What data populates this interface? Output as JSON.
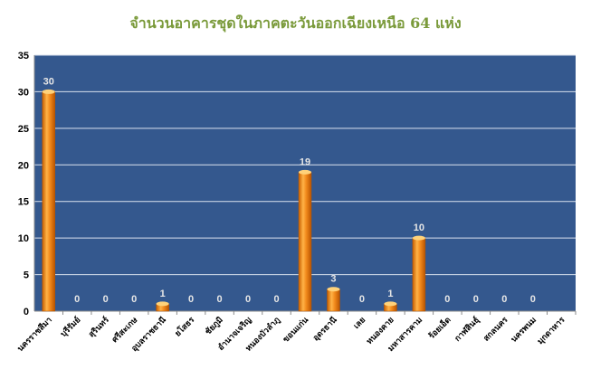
{
  "chart_data": {
    "type": "bar",
    "title": "จำนวนอาคารชุดในภาคตะวันออกเฉียงเหนือ 64 แห่ง",
    "categories": [
      "นครราชสีมา",
      "บุรีรัมย์",
      "สุรินทร์",
      "ศรีสะเกษ",
      "อุบลราชธานี",
      "ยโสธร",
      "ชัยภูมิ",
      "อำนาจเจริญ",
      "หนองบัวลำภู",
      "ขอนแก่น",
      "อุดรธานี",
      "เลย",
      "หนองคาย",
      "มหาสารคาม",
      "ร้อยเอ็ด",
      "กาฬสินธุ์",
      "สกลนคร",
      "นครพนม",
      "มุกดาหาร"
    ],
    "series": [
      {
        "values": [
          30,
          0,
          0,
          0,
          1,
          0,
          0,
          0,
          0,
          19,
          3,
          0,
          1,
          10,
          0,
          0,
          0,
          0,
          null
        ],
        "labels": [
          "30",
          "0",
          "0",
          "0",
          "1",
          "0",
          "0",
          "0",
          "0",
          "19",
          "3",
          "0",
          "1",
          "10",
          "0",
          "0",
          "0",
          "0",
          ""
        ]
      }
    ],
    "ylim": [
      0,
      35
    ],
    "yticks": [
      0,
      5,
      10,
      15,
      20,
      25,
      30,
      35
    ],
    "grid": true,
    "colors": {
      "plot_bg": "#34588E",
      "grid": "#D9E1EE",
      "bar": "#F28A1C",
      "bar_light": "#FFD27A",
      "bar_dark": "#C75E00",
      "label": "#E6E6E6",
      "title": "#7A9A3A"
    }
  }
}
